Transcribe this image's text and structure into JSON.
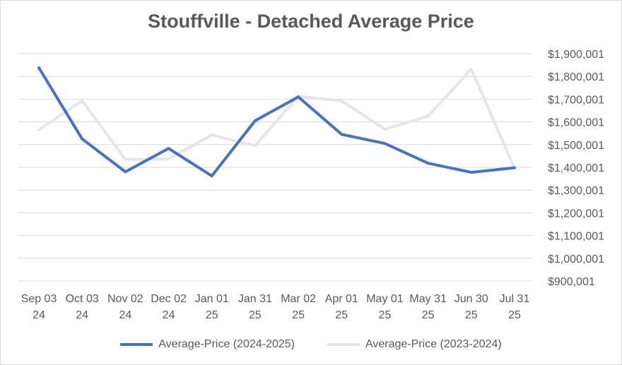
{
  "chart_data": {
    "type": "line",
    "title": "Stouffville - Detached Average Price",
    "xlabel": "",
    "ylabel": "",
    "categories": [
      [
        "Sep 03",
        "24"
      ],
      [
        "Oct 03",
        "24"
      ],
      [
        "Nov 02",
        "24"
      ],
      [
        "Dec 02",
        "24"
      ],
      [
        "Jan 01",
        "25"
      ],
      [
        "Jan 31",
        "25"
      ],
      [
        "Mar 02",
        "25"
      ],
      [
        "Apr 01",
        "25"
      ],
      [
        "May 01",
        "25"
      ],
      [
        "May 31",
        "25"
      ],
      [
        "Jun 30",
        "25"
      ],
      [
        "Jul 31",
        "25"
      ]
    ],
    "ylim": [
      900001,
      1900001
    ],
    "yticks": [
      900001,
      1000001,
      1100001,
      1200001,
      1300001,
      1400001,
      1500001,
      1600001,
      1700001,
      1800001,
      1900001
    ],
    "ytick_labels": [
      "$900,001",
      "$1,000,001",
      "$1,100,001",
      "$1,200,001",
      "$1,300,001",
      "$1,400,001",
      "$1,500,001",
      "$1,600,001",
      "$1,700,001",
      "$1,800,001",
      "$1,900,001"
    ],
    "grid": true,
    "legend_position": "bottom",
    "series": [
      {
        "name": "Average-Price (2024-2025)",
        "color": "#4472c4",
        "values": [
          1838000,
          1525000,
          1380000,
          1483000,
          1362000,
          1605000,
          1710000,
          1545000,
          1505000,
          1418000,
          1378000,
          1398000
        ]
      },
      {
        "name": "Average-Price (2023-2024)",
        "color": "#e6e6e6",
        "values": [
          1565000,
          1693000,
          1435000,
          1437000,
          1542000,
          1495000,
          1713000,
          1692000,
          1568000,
          1625000,
          1832000,
          1395000
        ]
      }
    ]
  }
}
